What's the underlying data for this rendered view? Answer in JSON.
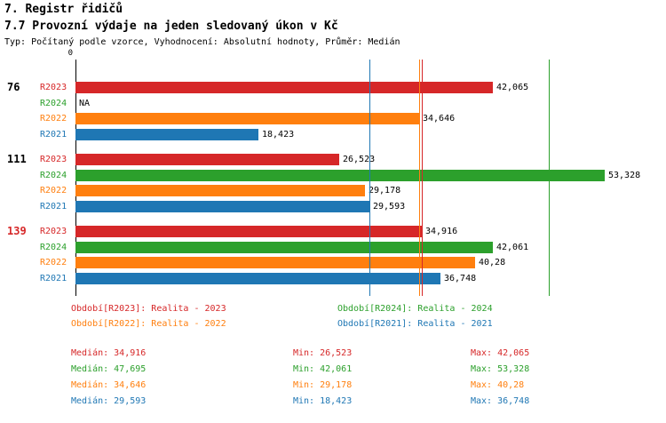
{
  "page": {
    "title": "7. Registr řidičů",
    "subtitle": "7.7 Provozní výdaje na jeden sledovaný úkon v Kč",
    "meta": "Typ: Počítaný podle vzorce, Vyhodnocení: Absolutní hodnoty, Průměr: Medián"
  },
  "colors": {
    "red": "#d62728",
    "green": "#2ca02c",
    "orange": "#ff7f0e",
    "blue": "#1f77b4"
  },
  "axis": {
    "zero_label": "0"
  },
  "chart_data": {
    "type": "bar",
    "orientation": "horizontal",
    "title": "7.7 Provozní výdaje na jeden sledovaný úkon v Kč",
    "xlabel": "Kč",
    "ylabel": "",
    "xlim": [
      0,
      59500
    ],
    "groups": [
      {
        "label": "76",
        "label_color": "#000000",
        "bars": [
          {
            "series": "R2023",
            "value": 42065,
            "display": "42,065",
            "color": "#d62728"
          },
          {
            "series": "R2024",
            "value": null,
            "display": "NA",
            "color": "#2ca02c"
          },
          {
            "series": "R2022",
            "value": 34646,
            "display": "34,646",
            "color": "#ff7f0e"
          },
          {
            "series": "R2021",
            "value": 18423,
            "display": "18,423",
            "color": "#1f77b4"
          }
        ]
      },
      {
        "label": "111",
        "label_color": "#000000",
        "bars": [
          {
            "series": "R2023",
            "value": 26523,
            "display": "26,523",
            "color": "#d62728"
          },
          {
            "series": "R2024",
            "value": 53328,
            "display": "53,328",
            "color": "#2ca02c"
          },
          {
            "series": "R2022",
            "value": 29178,
            "display": "29,178",
            "color": "#ff7f0e"
          },
          {
            "series": "R2021",
            "value": 29593,
            "display": "29,593",
            "color": "#1f77b4"
          }
        ]
      },
      {
        "label": "139",
        "label_color": "#d62728",
        "bars": [
          {
            "series": "R2023",
            "value": 34916,
            "display": "34,916",
            "color": "#d62728"
          },
          {
            "series": "R2024",
            "value": 42061,
            "display": "42,061",
            "color": "#2ca02c"
          },
          {
            "series": "R2022",
            "value": 40280,
            "display": "40,28",
            "color": "#ff7f0e"
          },
          {
            "series": "R2021",
            "value": 36748,
            "display": "36,748",
            "color": "#1f77b4"
          }
        ]
      }
    ],
    "median_lines": [
      {
        "series": "R2021",
        "value": 29593,
        "color": "#1f77b4"
      },
      {
        "series": "R2022",
        "value": 34646,
        "color": "#ff7f0e"
      },
      {
        "series": "R2023",
        "value": 34916,
        "color": "#d62728"
      },
      {
        "series": "R2024",
        "value": 47695,
        "color": "#2ca02c"
      }
    ]
  },
  "legend": [
    {
      "label": "Období[R2023]: Realita - 2023",
      "color": "#d62728"
    },
    {
      "label": "Období[R2024]: Realita - 2024",
      "color": "#2ca02c"
    },
    {
      "label": "Období[R2022]: Realita - 2022",
      "color": "#ff7f0e"
    },
    {
      "label": "Období[R2021]: Realita - 2021",
      "color": "#1f77b4"
    }
  ],
  "stats": [
    {
      "median": "Medián: 34,916",
      "min": "Min: 26,523",
      "max": "Max: 42,065",
      "color": "#d62728"
    },
    {
      "median": "Medián: 47,695",
      "min": "Min: 42,061",
      "max": "Max: 53,328",
      "color": "#2ca02c"
    },
    {
      "median": "Medián: 34,646",
      "min": "Min: 29,178",
      "max": "Max: 40,28",
      "color": "#ff7f0e"
    },
    {
      "median": "Medián: 29,593",
      "min": "Min: 18,423",
      "max": "Max: 36,748",
      "color": "#1f77b4"
    }
  ]
}
